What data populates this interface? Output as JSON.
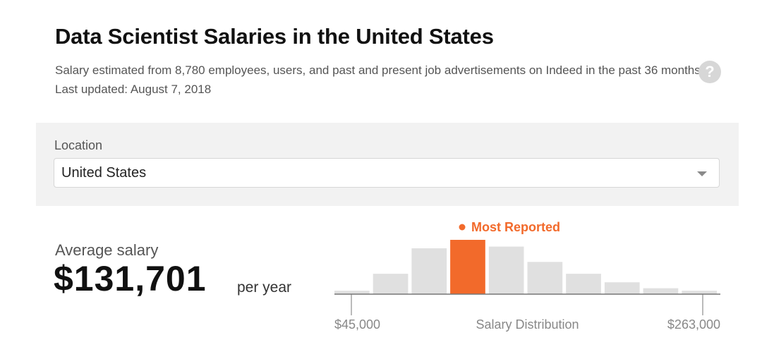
{
  "header": {
    "title": "Data Scientist Salaries in the United States",
    "subtitle": "Salary estimated from 8,780 employees, users, and past and present job advertisements on Indeed in the past 36 months. Last updated: August 7, 2018",
    "help_icon": "question-mark-icon"
  },
  "location": {
    "label": "Location",
    "selected": "United States"
  },
  "average": {
    "label": "Average salary",
    "value": "$131,701",
    "unit": "per year"
  },
  "chart_data": {
    "type": "bar",
    "title": "",
    "xlabel": "Salary Distribution",
    "ylabel": "",
    "x_min_label": "$45,000",
    "x_max_label": "$263,000",
    "values": [
      2,
      12,
      27,
      32,
      28,
      19,
      12,
      7,
      3.5,
      2
    ],
    "ylim": [
      0,
      32
    ],
    "highlight_index": 3,
    "highlight_label": "Most Reported",
    "colors": {
      "bar": "#e0e0e0",
      "highlight": "#f26a2b",
      "axis": "#777777",
      "axis_text": "#888888"
    }
  }
}
